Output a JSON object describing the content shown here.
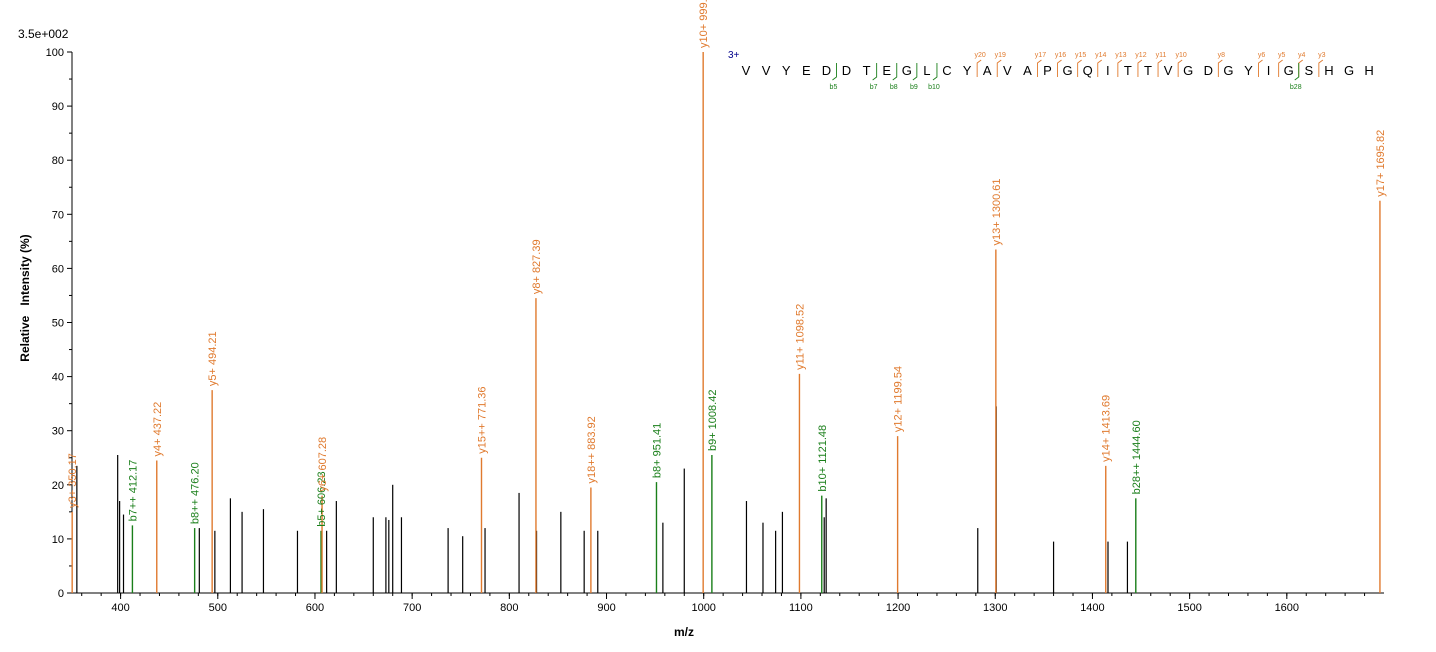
{
  "chart_data": {
    "type": "bar",
    "scale_label": "3.5e+002",
    "xlabel": "m/z",
    "ylabel": "Relative   Intensity (%)",
    "xlim": [
      350,
      1700
    ],
    "ylim": [
      0,
      100
    ],
    "x_ticks": [
      400,
      500,
      600,
      700,
      800,
      900,
      1000,
      1100,
      1200,
      1300,
      1400,
      1500,
      1600
    ],
    "y_ticks": [
      0,
      10,
      20,
      30,
      40,
      50,
      60,
      70,
      80,
      90,
      100
    ],
    "colors": {
      "y_ion": "#e07a2e",
      "b_ion": "#1a7f1a",
      "unassigned": "#000000",
      "charge": "#00008b"
    },
    "peaks_unassigned": [
      {
        "mz": 355,
        "intensity": 23.5
      },
      {
        "mz": 397,
        "intensity": 25.5
      },
      {
        "mz": 399,
        "intensity": 17
      },
      {
        "mz": 403,
        "intensity": 14.5
      },
      {
        "mz": 481,
        "intensity": 12
      },
      {
        "mz": 497,
        "intensity": 11.5
      },
      {
        "mz": 513,
        "intensity": 17.5
      },
      {
        "mz": 525,
        "intensity": 15
      },
      {
        "mz": 547,
        "intensity": 15.5
      },
      {
        "mz": 582,
        "intensity": 11.5
      },
      {
        "mz": 612,
        "intensity": 11.5
      },
      {
        "mz": 622,
        "intensity": 17
      },
      {
        "mz": 660,
        "intensity": 14
      },
      {
        "mz": 673,
        "intensity": 14
      },
      {
        "mz": 676,
        "intensity": 13.5
      },
      {
        "mz": 680,
        "intensity": 20
      },
      {
        "mz": 689,
        "intensity": 14
      },
      {
        "mz": 737,
        "intensity": 12
      },
      {
        "mz": 752,
        "intensity": 10.5
      },
      {
        "mz": 775,
        "intensity": 12
      },
      {
        "mz": 810,
        "intensity": 18.5
      },
      {
        "mz": 828,
        "intensity": 11.5
      },
      {
        "mz": 853,
        "intensity": 15
      },
      {
        "mz": 877,
        "intensity": 11.5
      },
      {
        "mz": 891,
        "intensity": 11.5
      },
      {
        "mz": 958,
        "intensity": 13
      },
      {
        "mz": 980,
        "intensity": 23
      },
      {
        "mz": 1044,
        "intensity": 17
      },
      {
        "mz": 1061,
        "intensity": 13
      },
      {
        "mz": 1074,
        "intensity": 11.5
      },
      {
        "mz": 1081,
        "intensity": 15
      },
      {
        "mz": 1124,
        "intensity": 14
      },
      {
        "mz": 1126,
        "intensity": 17.5
      },
      {
        "mz": 1282,
        "intensity": 12
      },
      {
        "mz": 1301,
        "intensity": 34.5
      },
      {
        "mz": 1360,
        "intensity": 9.5
      },
      {
        "mz": 1416,
        "intensity": 9.5
      },
      {
        "mz": 1436,
        "intensity": 9.5
      }
    ],
    "peaks_assigned": [
      {
        "mz": 350.17,
        "intensity": 15,
        "ion": "y",
        "label": "y3+ 350.17"
      },
      {
        "mz": 412.17,
        "intensity": 12.5,
        "ion": "b",
        "label": "b7++ 412.17"
      },
      {
        "mz": 437.22,
        "intensity": 24.5,
        "ion": "y",
        "label": "y4+ 437.22"
      },
      {
        "mz": 476.2,
        "intensity": 12,
        "ion": "b",
        "label": "b8++ 476.20"
      },
      {
        "mz": 494.21,
        "intensity": 37.5,
        "ion": "y",
        "label": "y5+ 494.21"
      },
      {
        "mz": 606.23,
        "intensity": 11.5,
        "ion": "b",
        "label": "b5+ 606.23"
      },
      {
        "mz": 607.28,
        "intensity": 18,
        "ion": "y",
        "label": "y6+ 607.28"
      },
      {
        "mz": 771.36,
        "intensity": 25,
        "ion": "y",
        "label": "y15++ 771.36"
      },
      {
        "mz": 827.39,
        "intensity": 54.5,
        "ion": "y",
        "label": "y8+ 827.39"
      },
      {
        "mz": 883.92,
        "intensity": 19.5,
        "ion": "y",
        "label": "y18++ 883.92"
      },
      {
        "mz": 951.41,
        "intensity": 20.5,
        "ion": "b",
        "label": "b8+ 951.41"
      },
      {
        "mz": 999.45,
        "intensity": 100,
        "ion": "y",
        "label": "y10+ 999.45"
      },
      {
        "mz": 1008.42,
        "intensity": 25.5,
        "ion": "b",
        "label": "b9+ 1008.42"
      },
      {
        "mz": 1098.52,
        "intensity": 40.5,
        "ion": "y",
        "label": "y11+ 1098.52"
      },
      {
        "mz": 1121.48,
        "intensity": 18,
        "ion": "b",
        "label": "b10+ 1121.48"
      },
      {
        "mz": 1199.54,
        "intensity": 29,
        "ion": "y",
        "label": "y12+ 1199.54"
      },
      {
        "mz": 1300.61,
        "intensity": 63.5,
        "ion": "y",
        "label": "y13+ 1300.61"
      },
      {
        "mz": 1413.69,
        "intensity": 23.5,
        "ion": "y",
        "label": "y14+ 1413.69"
      },
      {
        "mz": 1444.6,
        "intensity": 17.5,
        "ion": "b",
        "label": "b28++ 1444.60"
      },
      {
        "mz": 1695.82,
        "intensity": 72.5,
        "ion": "y",
        "label": "y17+ 1695.82"
      }
    ],
    "sequence": {
      "charge": "3+",
      "residues": [
        "V",
        "V",
        "Y",
        "E",
        "D",
        "D",
        "T",
        "E",
        "G",
        "L",
        "C",
        "Y",
        "A",
        "V",
        "A",
        "P",
        "G",
        "Q",
        "I",
        "T",
        "T",
        "V",
        "G",
        "D",
        "G",
        "Y",
        "I",
        "G",
        "S",
        "H",
        "G",
        "H"
      ],
      "y_fragments": [
        {
          "after": 12,
          "label": "y20"
        },
        {
          "after": 13,
          "label": "y19"
        },
        {
          "after": 15,
          "label": "y17"
        },
        {
          "after": 16,
          "label": "y16"
        },
        {
          "after": 17,
          "label": "y15"
        },
        {
          "after": 18,
          "label": "y14"
        },
        {
          "after": 19,
          "label": "y13"
        },
        {
          "after": 20,
          "label": "y12"
        },
        {
          "after": 21,
          "label": "y11"
        },
        {
          "after": 22,
          "label": "y10"
        },
        {
          "after": 24,
          "label": "y8"
        },
        {
          "after": 26,
          "label": "y6"
        },
        {
          "after": 27,
          "label": "y5"
        },
        {
          "after": 28,
          "label": "y4"
        },
        {
          "after": 29,
          "label": "y3"
        }
      ],
      "b_fragments": [
        {
          "after": 5,
          "label": "b5"
        },
        {
          "after": 7,
          "label": "b7"
        },
        {
          "after": 8,
          "label": "b8"
        },
        {
          "after": 9,
          "label": "b9"
        },
        {
          "after": 10,
          "label": "b10"
        },
        {
          "after": 28,
          "label": "b28"
        }
      ]
    }
  }
}
